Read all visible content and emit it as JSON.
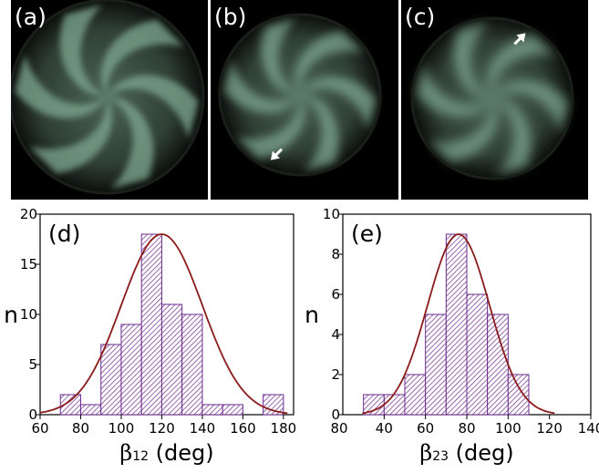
{
  "panels": [
    {
      "label": "(a)",
      "arrow": "none"
    },
    {
      "label": "(b)",
      "arrow": "bottom-left"
    },
    {
      "label": "(c)",
      "arrow": "top-right"
    }
  ],
  "colors": {
    "background": "#000000",
    "glow": "#7fa890",
    "bar_outline": "#6b2a8c",
    "hatch": "#6b2a8c",
    "fit_curve": "#8b1a1a"
  },
  "chart_data": [
    {
      "type": "bar",
      "panel_label": "(d)",
      "ylabel": "n",
      "xlabel_symbol": "β",
      "xlabel_sub": "12",
      "xlabel_unit": " (deg)",
      "bin_width": 10,
      "bins": [
        {
          "x": 70,
          "count": 2
        },
        {
          "x": 80,
          "count": 1
        },
        {
          "x": 90,
          "count": 7
        },
        {
          "x": 100,
          "count": 9
        },
        {
          "x": 110,
          "count": 18
        },
        {
          "x": 120,
          "count": 11
        },
        {
          "x": 130,
          "count": 10
        },
        {
          "x": 140,
          "count": 1
        },
        {
          "x": 150,
          "count": 1
        },
        {
          "x": 170,
          "count": 2
        }
      ],
      "fit": {
        "type": "gaussian",
        "mean": 120,
        "sigma": 20,
        "amplitude": 18
      },
      "xlim": [
        60,
        185
      ],
      "ylim": [
        0,
        20
      ],
      "xticks": [
        60,
        80,
        100,
        120,
        140,
        160,
        180
      ],
      "yticks": [
        0,
        5,
        10,
        15,
        20
      ]
    },
    {
      "type": "bar",
      "panel_label": "(e)",
      "ylabel": "n",
      "xlabel_symbol": "β",
      "xlabel_sub": "23",
      "xlabel_unit": " (deg)",
      "bin_width": 10,
      "bins": [
        {
          "x": 30,
          "count": 1
        },
        {
          "x": 40,
          "count": 1
        },
        {
          "x": 50,
          "count": 2
        },
        {
          "x": 60,
          "count": 5
        },
        {
          "x": 70,
          "count": 9
        },
        {
          "x": 80,
          "count": 6
        },
        {
          "x": 90,
          "count": 5
        },
        {
          "x": 100,
          "count": 2
        }
      ],
      "fit": {
        "type": "gaussian",
        "mean": 76,
        "sigma": 15,
        "amplitude": 9
      },
      "xlim": [
        20,
        140
      ],
      "ylim": [
        0,
        10
      ],
      "xticks": [
        40,
        60,
        80,
        100,
        120,
        140
      ],
      "xtick_labels": [
        "40",
        "60",
        "80",
        "100",
        "120",
        "140"
      ],
      "yticks": [
        0,
        2,
        4,
        6,
        8,
        10
      ],
      "extra_xtick_label": "80"
    }
  ]
}
